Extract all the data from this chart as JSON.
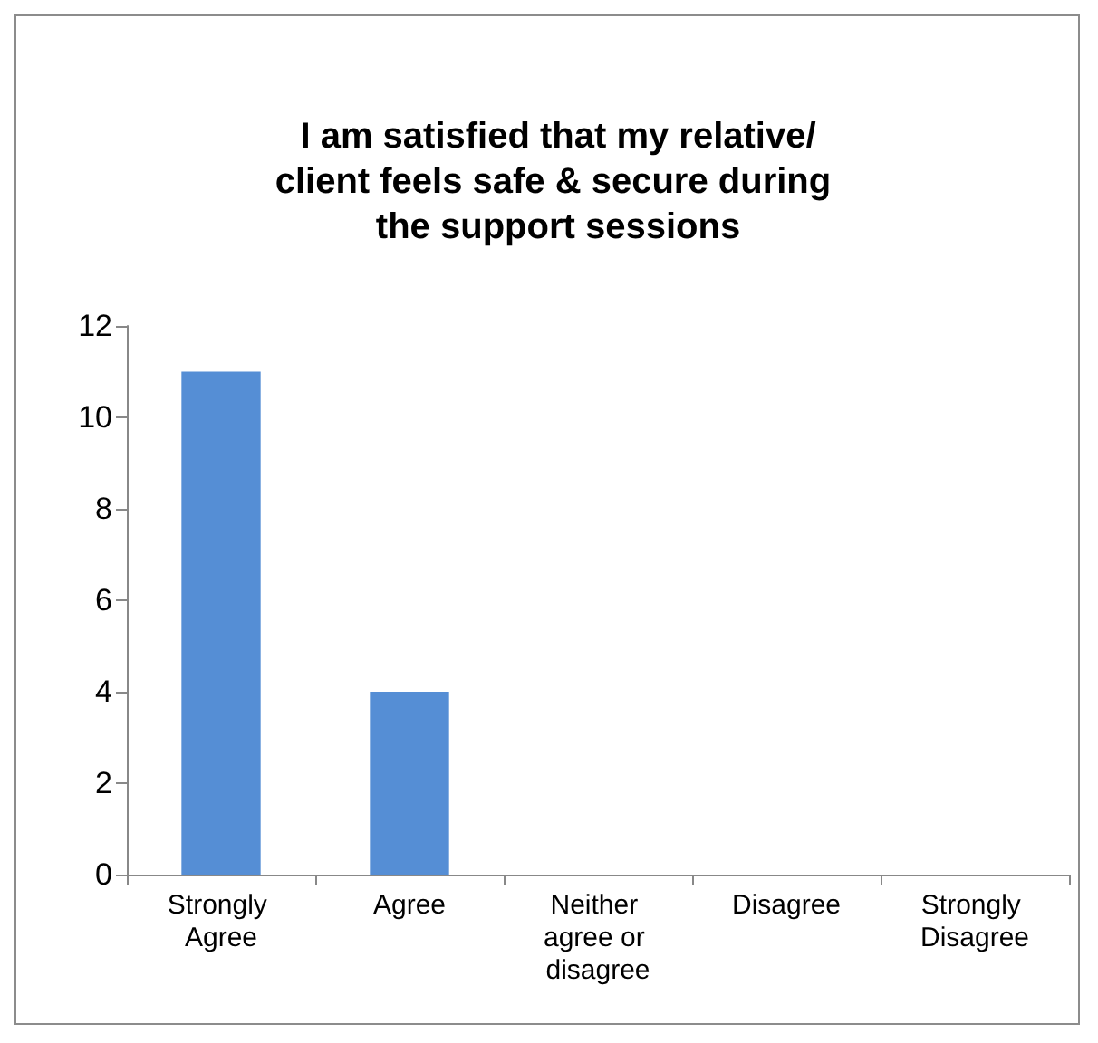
{
  "chart_data": {
    "type": "bar",
    "title": "I am satisfied that my relative/client feels safe & secure during the support sessions",
    "categories": [
      "Strongly Agree",
      "Agree",
      "Neither agree or disagree",
      "Disagree",
      "Strongly Disagree"
    ],
    "values": [
      11,
      4,
      0,
      0,
      0
    ],
    "color": "#558ed5",
    "ylim": [
      0,
      12
    ],
    "yticks": [
      0,
      2,
      4,
      6,
      8,
      10,
      12
    ],
    "grid": false
  }
}
